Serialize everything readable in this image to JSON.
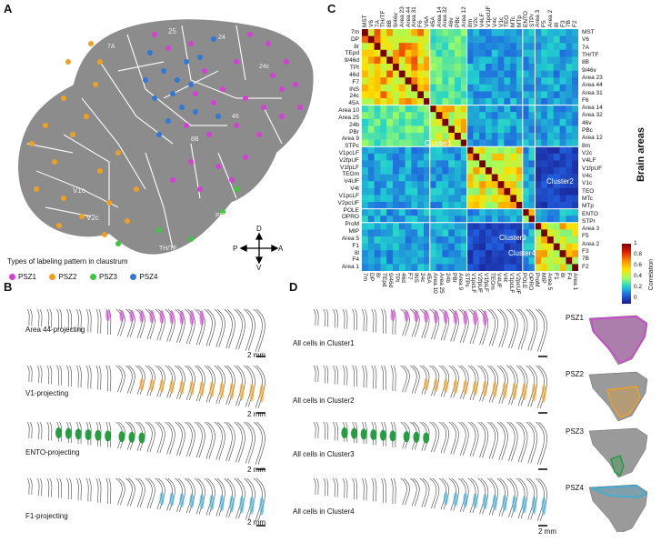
{
  "panel_labels": {
    "a": "A",
    "b": "B",
    "c": "C",
    "d": "D"
  },
  "panelA": {
    "legend_title": "Types of labeling pattern in claustrum",
    "legend": [
      {
        "name": "PSZ1",
        "color": "#d63fd6"
      },
      {
        "name": "PSZ2",
        "color": "#f0a020"
      },
      {
        "name": "PSZ3",
        "color": "#3cc83c"
      },
      {
        "name": "PSZ4",
        "color": "#2f78d6"
      }
    ],
    "compass": {
      "d": "D",
      "v": "V",
      "a": "A",
      "p": "P"
    },
    "map_labels": [
      "V1c",
      "V2c",
      "TH/TF",
      "POLE",
      "25",
      "24",
      "8B",
      "46",
      "24c",
      "7A"
    ]
  },
  "panelB": {
    "rows": [
      {
        "label": "Area 44-projecting",
        "color": "#d63fd6"
      },
      {
        "label": "V1-projecting",
        "color": "#f0a020"
      },
      {
        "label": "ENTO-projecting",
        "color": "#1e9a3a"
      },
      {
        "label": "F1-projecting",
        "color": "#3aaed8"
      }
    ],
    "scale": "2 mm"
  },
  "panelC": {
    "ylabel": "Brain areas",
    "areas": [
      "MST",
      "V6",
      "7A",
      "TH/TF",
      "8B",
      "9/46v",
      "Area 23",
      "Area 44",
      "Area 31",
      "F6",
      "V6A",
      "45A",
      "Area 14",
      "Area 32",
      "46v",
      "PBc",
      "Area 12",
      "8m",
      "V2c",
      "V4LF",
      "V1pcUF",
      "V4c",
      "V1c",
      "TEO",
      "MTc",
      "MTp",
      "ENTO",
      "STPr",
      "Area 3",
      "F5",
      "Area 2",
      "8l",
      "F3",
      "7B",
      "F2"
    ],
    "row_labels": [
      "7m",
      "DP",
      "8r",
      "TEpd",
      "9/46d",
      "TPt",
      "46d",
      "F7",
      "INS",
      "24c",
      "45A",
      "Area 10",
      "Area 25",
      "24b",
      "PBr",
      "Area 9",
      "STPc",
      "V1pcLF",
      "V2fpUF",
      "V1fpLF",
      "TEOm",
      "V4UF",
      "V4t",
      "V1pcLF",
      "V2pcUF",
      "POLE",
      "OPRO",
      "ProM",
      "MIP",
      "Area 5",
      "F1",
      "8l",
      "F4",
      "Area 1"
    ],
    "right_labels": [
      "MST",
      "V6",
      "7A",
      "TH/TF",
      "8B",
      "9/46v",
      "Area 23",
      "Area 44",
      "Area 31",
      "F6",
      "Area 14",
      "Area 32",
      "46v",
      "PBc",
      "Area 12",
      "8m",
      "V2c",
      "V4LF",
      "V1fpUF",
      "V4c",
      "V1c",
      "TEO",
      "MTc",
      "MTp",
      "ENTO",
      "STPr",
      "Area 3",
      "F5",
      "Area 2",
      "F3",
      "7B",
      "F2"
    ],
    "clusters": [
      "Cluster1",
      "Cluster2",
      "Cluster3",
      "Cluster4"
    ],
    "colorbar": {
      "title": "Correlation",
      "ticks": [
        "1",
        "0.8",
        "0.6",
        "0.4",
        "0.2",
        "0"
      ]
    }
  },
  "panelD": {
    "rows": [
      {
        "label": "All cells in Cluster1",
        "psz": "PSZ1",
        "color": "#d63fd6"
      },
      {
        "label": "All cells in Cluster2",
        "psz": "PSZ2",
        "color": "#f0a020"
      },
      {
        "label": "All cells in Cluster3",
        "psz": "PSZ3",
        "color": "#1e9a3a"
      },
      {
        "label": "All cells in Cluster4",
        "psz": "PSZ4",
        "color": "#3aaed8"
      }
    ],
    "scale": "2 mm"
  }
}
